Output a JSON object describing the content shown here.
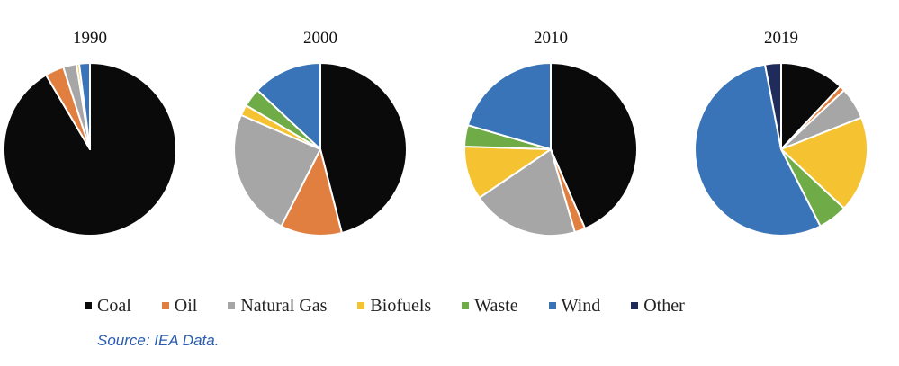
{
  "chart_data": {
    "type": "pie",
    "legend_position": "bottom",
    "legend": [
      {
        "name": "Coal",
        "color": "#0a0a0a"
      },
      {
        "name": "Oil",
        "color": "#e07f3f"
      },
      {
        "name": "Natural Gas",
        "color": "#a6a6a6"
      },
      {
        "name": "Biofuels",
        "color": "#f5c232"
      },
      {
        "name": "Waste",
        "color": "#6fab46"
      },
      {
        "name": "Wind",
        "color": "#3a74b8"
      },
      {
        "name": "Other",
        "color": "#1f2b5a"
      }
    ],
    "charts": [
      {
        "title": "1990",
        "slices": [
          {
            "name": "Coal",
            "value": 91.5
          },
          {
            "name": "Oil",
            "value": 3.5
          },
          {
            "name": "Natural Gas",
            "value": 2.5
          },
          {
            "name": "Biofuels",
            "value": 0.5
          },
          {
            "name": "Waste",
            "value": 0
          },
          {
            "name": "Wind",
            "value": 2.0
          },
          {
            "name": "Other",
            "value": 0
          }
        ]
      },
      {
        "title": "2000",
        "slices": [
          {
            "name": "Coal",
            "value": 46.0
          },
          {
            "name": "Oil",
            "value": 11.5
          },
          {
            "name": "Natural Gas",
            "value": 24.0
          },
          {
            "name": "Biofuels",
            "value": 2.0
          },
          {
            "name": "Waste",
            "value": 3.5
          },
          {
            "name": "Wind",
            "value": 13.0
          },
          {
            "name": "Other",
            "value": 0
          }
        ]
      },
      {
        "title": "2010",
        "slices": [
          {
            "name": "Coal",
            "value": 43.5
          },
          {
            "name": "Oil",
            "value": 2.0
          },
          {
            "name": "Natural Gas",
            "value": 20.0
          },
          {
            "name": "Biofuels",
            "value": 10.0
          },
          {
            "name": "Waste",
            "value": 4.0
          },
          {
            "name": "Wind",
            "value": 20.5
          },
          {
            "name": "Other",
            "value": 0
          }
        ]
      },
      {
        "title": "2019",
        "slices": [
          {
            "name": "Coal",
            "value": 12.0
          },
          {
            "name": "Oil",
            "value": 1.0
          },
          {
            "name": "Natural Gas",
            "value": 6.0
          },
          {
            "name": "Biofuels",
            "value": 18.0
          },
          {
            "name": "Waste",
            "value": 5.5
          },
          {
            "name": "Wind",
            "value": 54.5
          },
          {
            "name": "Other",
            "value": 3.0
          }
        ]
      }
    ]
  },
  "source": "Source: IEA Data."
}
